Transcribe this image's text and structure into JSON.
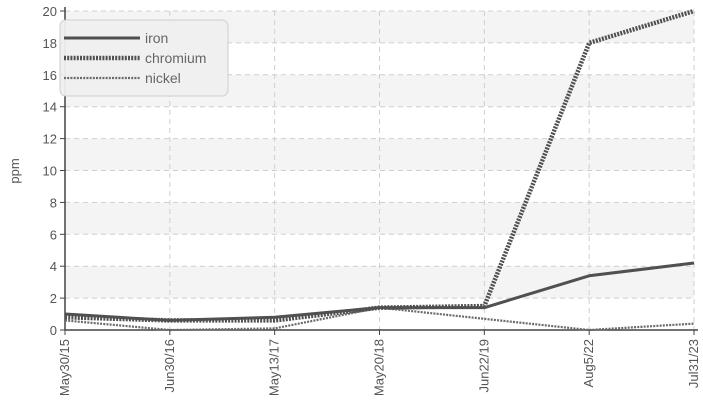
{
  "chart_data": {
    "type": "line",
    "ylabel": "ppm",
    "xlabel": "",
    "ylim": [
      0,
      20
    ],
    "yticks": [
      0,
      2,
      4,
      6,
      8,
      10,
      12,
      14,
      16,
      18,
      20
    ],
    "categories": [
      "May30/15",
      "Jun30/16",
      "May13/17",
      "May20/18",
      "Jun22/19",
      "Aug5/22",
      "Jul31/23"
    ],
    "grid": true,
    "legend_position": "top-left",
    "series": [
      {
        "name": "iron",
        "values": [
          1.0,
          0.6,
          0.8,
          1.4,
          1.4,
          3.4,
          4.2
        ],
        "color": "#505050",
        "style": "solid"
      },
      {
        "name": "chromium",
        "values": [
          0.8,
          0.6,
          0.6,
          1.4,
          1.5,
          18.0,
          20.0
        ],
        "color": "#505050",
        "style": "dotted-thick"
      },
      {
        "name": "nickel",
        "values": [
          0.6,
          0.0,
          0.1,
          1.4,
          0.7,
          0.0,
          0.4
        ],
        "color": "#6a6a6a",
        "style": "dotted-thin"
      }
    ]
  }
}
